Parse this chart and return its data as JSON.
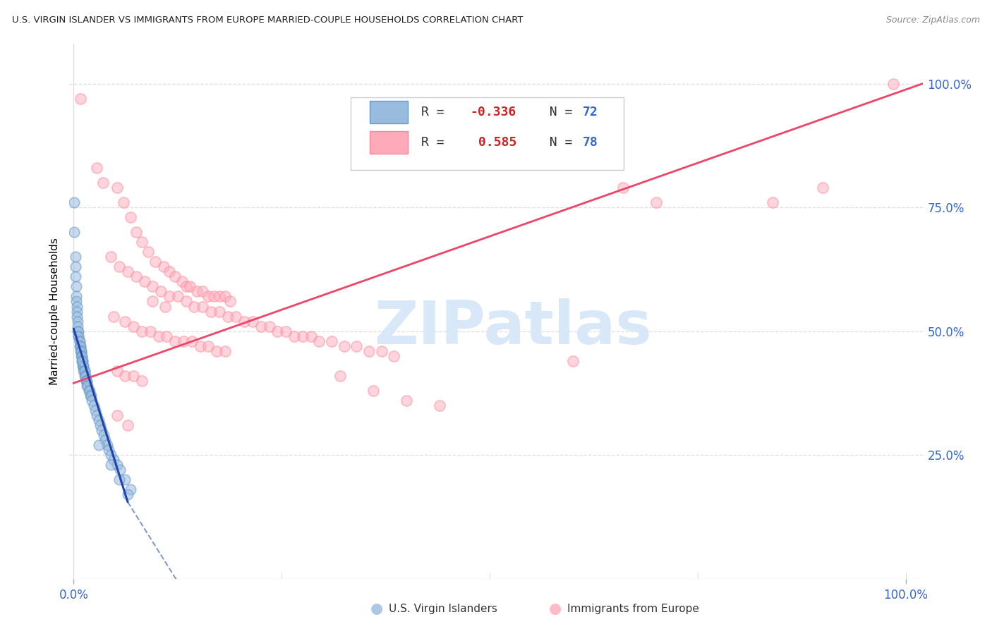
{
  "title": "U.S. VIRGIN ISLANDER VS IMMIGRANTS FROM EUROPE MARRIED-COUPLE HOUSEHOLDS CORRELATION CHART",
  "source": "Source: ZipAtlas.com",
  "ylabel": "Married-couple Households",
  "watermark": "ZIPatlas",
  "legend_label1": "U.S. Virgin Islanders",
  "legend_label2": "Immigrants from Europe",
  "blue_color": "#99BBDD",
  "blue_edge_color": "#6699CC",
  "pink_color": "#FFAABB",
  "pink_edge_color": "#FF8899",
  "blue_line_color": "#2244AA",
  "pink_line_color": "#EE4466",
  "axis_color": "#3366CC",
  "blue_scatter": [
    [
      0.001,
      0.76
    ],
    [
      0.001,
      0.7
    ],
    [
      0.002,
      0.65
    ],
    [
      0.002,
      0.63
    ],
    [
      0.002,
      0.61
    ],
    [
      0.003,
      0.59
    ],
    [
      0.003,
      0.57
    ],
    [
      0.003,
      0.56
    ],
    [
      0.004,
      0.55
    ],
    [
      0.004,
      0.54
    ],
    [
      0.004,
      0.53
    ],
    [
      0.005,
      0.52
    ],
    [
      0.005,
      0.51
    ],
    [
      0.005,
      0.5
    ],
    [
      0.006,
      0.5
    ],
    [
      0.006,
      0.49
    ],
    [
      0.006,
      0.49
    ],
    [
      0.007,
      0.48
    ],
    [
      0.007,
      0.48
    ],
    [
      0.007,
      0.47
    ],
    [
      0.008,
      0.47
    ],
    [
      0.008,
      0.47
    ],
    [
      0.008,
      0.46
    ],
    [
      0.009,
      0.46
    ],
    [
      0.009,
      0.46
    ],
    [
      0.009,
      0.45
    ],
    [
      0.01,
      0.45
    ],
    [
      0.01,
      0.45
    ],
    [
      0.01,
      0.44
    ],
    [
      0.011,
      0.44
    ],
    [
      0.011,
      0.44
    ],
    [
      0.011,
      0.43
    ],
    [
      0.012,
      0.43
    ],
    [
      0.012,
      0.43
    ],
    [
      0.012,
      0.42
    ],
    [
      0.013,
      0.42
    ],
    [
      0.013,
      0.42
    ],
    [
      0.013,
      0.41
    ],
    [
      0.014,
      0.41
    ],
    [
      0.014,
      0.41
    ],
    [
      0.015,
      0.4
    ],
    [
      0.015,
      0.4
    ],
    [
      0.016,
      0.4
    ],
    [
      0.016,
      0.39
    ],
    [
      0.017,
      0.39
    ],
    [
      0.018,
      0.38
    ],
    [
      0.019,
      0.38
    ],
    [
      0.02,
      0.37
    ],
    [
      0.021,
      0.37
    ],
    [
      0.022,
      0.36
    ],
    [
      0.024,
      0.35
    ],
    [
      0.026,
      0.34
    ],
    [
      0.028,
      0.33
    ],
    [
      0.03,
      0.32
    ],
    [
      0.032,
      0.31
    ],
    [
      0.034,
      0.3
    ],
    [
      0.036,
      0.29
    ],
    [
      0.038,
      0.28
    ],
    [
      0.04,
      0.27
    ],
    [
      0.042,
      0.26
    ],
    [
      0.045,
      0.25
    ],
    [
      0.048,
      0.24
    ],
    [
      0.052,
      0.23
    ],
    [
      0.056,
      0.22
    ],
    [
      0.062,
      0.2
    ],
    [
      0.068,
      0.18
    ],
    [
      0.03,
      0.27
    ],
    [
      0.045,
      0.23
    ],
    [
      0.055,
      0.2
    ],
    [
      0.065,
      0.17
    ],
    [
      0.01,
      0.44
    ]
  ],
  "pink_scatter": [
    [
      0.008,
      0.97
    ],
    [
      0.028,
      0.83
    ],
    [
      0.035,
      0.8
    ],
    [
      0.052,
      0.79
    ],
    [
      0.06,
      0.76
    ],
    [
      0.068,
      0.73
    ],
    [
      0.075,
      0.7
    ],
    [
      0.082,
      0.68
    ],
    [
      0.09,
      0.66
    ],
    [
      0.098,
      0.64
    ],
    [
      0.108,
      0.63
    ],
    [
      0.115,
      0.62
    ],
    [
      0.122,
      0.61
    ],
    [
      0.13,
      0.6
    ],
    [
      0.135,
      0.59
    ],
    [
      0.14,
      0.59
    ],
    [
      0.148,
      0.58
    ],
    [
      0.155,
      0.58
    ],
    [
      0.162,
      0.57
    ],
    [
      0.168,
      0.57
    ],
    [
      0.175,
      0.57
    ],
    [
      0.182,
      0.57
    ],
    [
      0.188,
      0.56
    ],
    [
      0.045,
      0.65
    ],
    [
      0.055,
      0.63
    ],
    [
      0.065,
      0.62
    ],
    [
      0.075,
      0.61
    ],
    [
      0.085,
      0.6
    ],
    [
      0.095,
      0.59
    ],
    [
      0.105,
      0.58
    ],
    [
      0.115,
      0.57
    ],
    [
      0.125,
      0.57
    ],
    [
      0.135,
      0.56
    ],
    [
      0.145,
      0.55
    ],
    [
      0.155,
      0.55
    ],
    [
      0.165,
      0.54
    ],
    [
      0.175,
      0.54
    ],
    [
      0.185,
      0.53
    ],
    [
      0.195,
      0.53
    ],
    [
      0.205,
      0.52
    ],
    [
      0.215,
      0.52
    ],
    [
      0.225,
      0.51
    ],
    [
      0.235,
      0.51
    ],
    [
      0.245,
      0.5
    ],
    [
      0.255,
      0.5
    ],
    [
      0.265,
      0.49
    ],
    [
      0.275,
      0.49
    ],
    [
      0.285,
      0.49
    ],
    [
      0.295,
      0.48
    ],
    [
      0.31,
      0.48
    ],
    [
      0.325,
      0.47
    ],
    [
      0.34,
      0.47
    ],
    [
      0.355,
      0.46
    ],
    [
      0.37,
      0.46
    ],
    [
      0.385,
      0.45
    ],
    [
      0.095,
      0.56
    ],
    [
      0.11,
      0.55
    ],
    [
      0.048,
      0.53
    ],
    [
      0.062,
      0.52
    ],
    [
      0.072,
      0.51
    ],
    [
      0.082,
      0.5
    ],
    [
      0.092,
      0.5
    ],
    [
      0.102,
      0.49
    ],
    [
      0.112,
      0.49
    ],
    [
      0.122,
      0.48
    ],
    [
      0.132,
      0.48
    ],
    [
      0.142,
      0.48
    ],
    [
      0.152,
      0.47
    ],
    [
      0.162,
      0.47
    ],
    [
      0.172,
      0.46
    ],
    [
      0.182,
      0.46
    ],
    [
      0.052,
      0.42
    ],
    [
      0.062,
      0.41
    ],
    [
      0.072,
      0.41
    ],
    [
      0.082,
      0.4
    ],
    [
      0.32,
      0.41
    ],
    [
      0.36,
      0.38
    ],
    [
      0.4,
      0.36
    ],
    [
      0.44,
      0.35
    ],
    [
      0.052,
      0.33
    ],
    [
      0.065,
      0.31
    ],
    [
      0.6,
      0.44
    ],
    [
      0.66,
      0.79
    ],
    [
      0.7,
      0.76
    ],
    [
      0.84,
      0.76
    ],
    [
      0.9,
      0.79
    ],
    [
      0.985,
      1.0
    ]
  ],
  "ylim": [
    0.0,
    1.08
  ],
  "xlim": [
    -0.005,
    1.02
  ],
  "yticks": [
    0.0,
    0.25,
    0.5,
    0.75,
    1.0
  ],
  "ytick_labels": [
    "",
    "25.0%",
    "50.0%",
    "75.0%",
    "100.0%"
  ],
  "xtick_vals": [
    0.0,
    1.0
  ],
  "xtick_labels": [
    "0.0%",
    "100.0%"
  ],
  "watermark_color": "#D8E8F8",
  "grid_color": "#DDDDDD"
}
